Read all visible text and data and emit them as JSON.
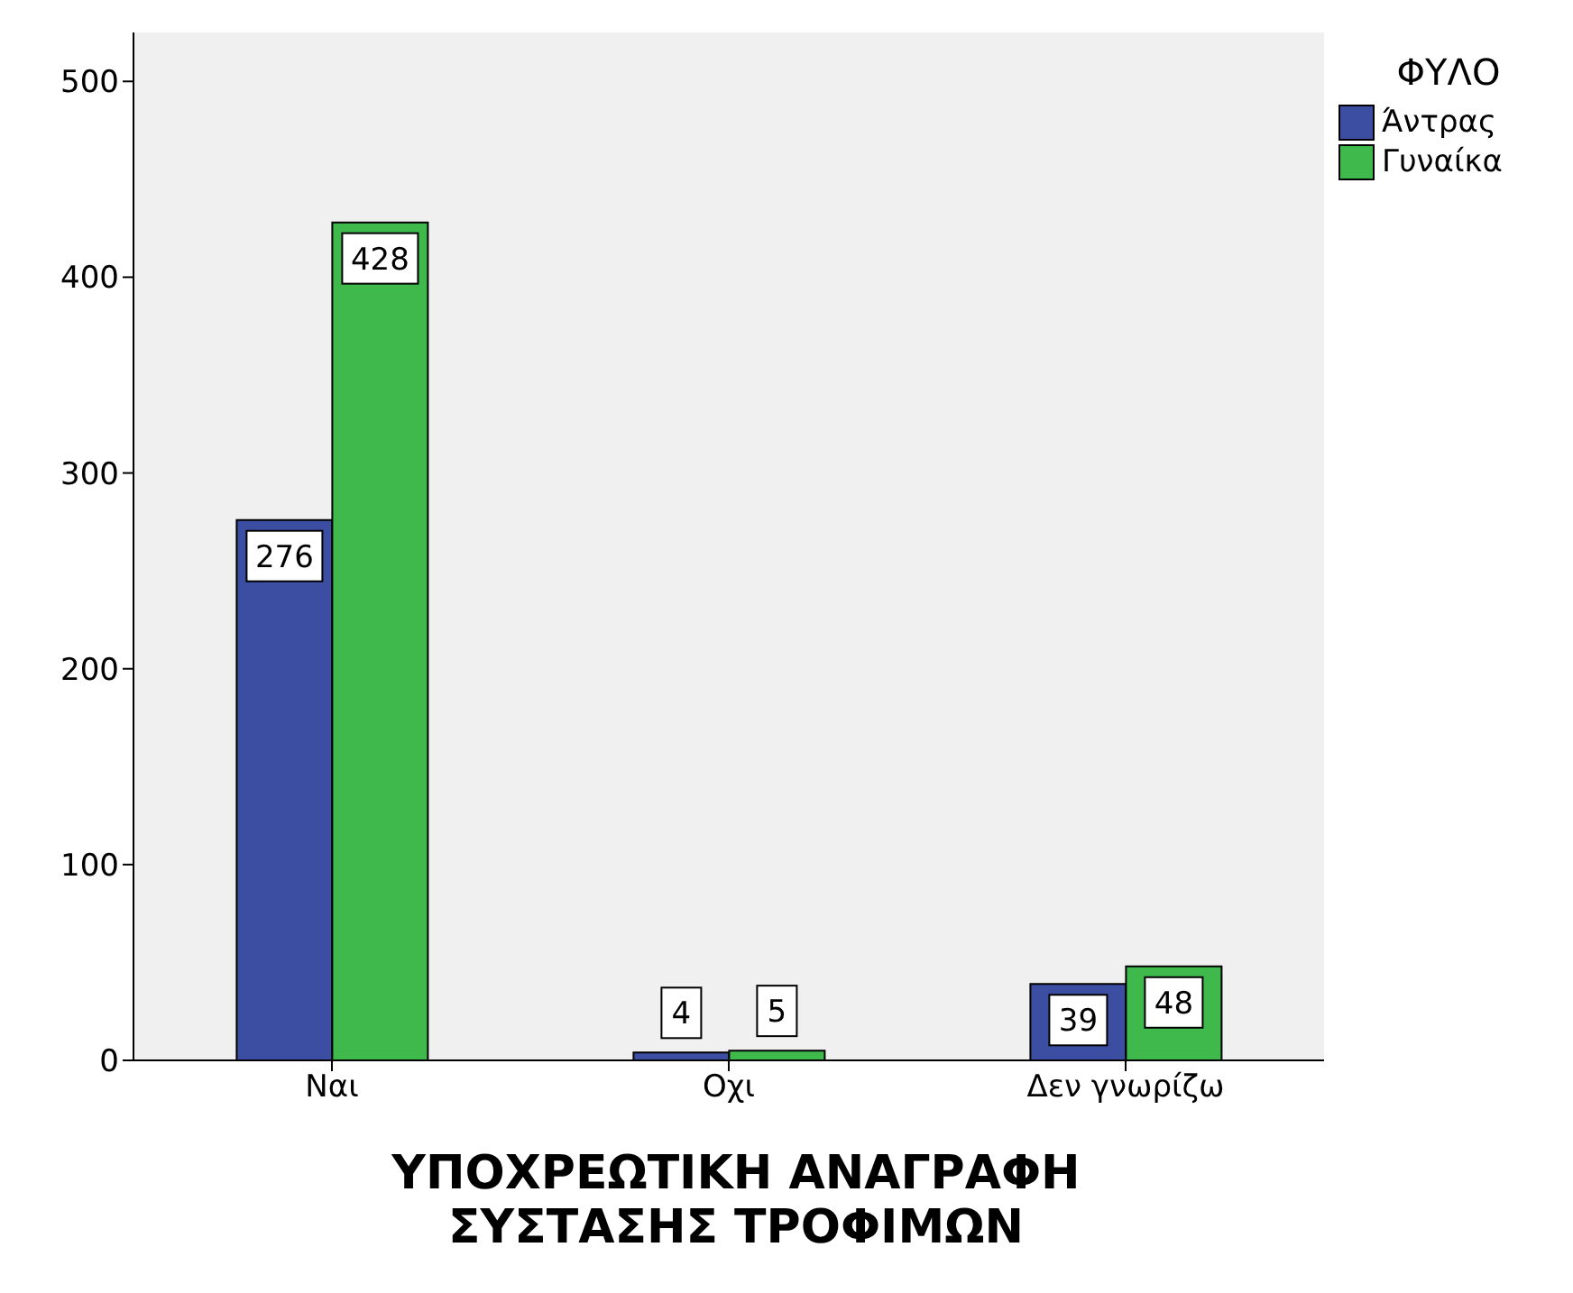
{
  "chart_data": {
    "type": "bar",
    "xlabel": "ΥΠΟΧΡΕΩΤΙΚΗ ΑΝΑΓΡΑΦΗ\nΣΥΣΤΑΣΗΣ ΤΡΟΦΙΜΩΝ",
    "legend_title": "ΦΥΛΟ",
    "categories": [
      "Ναι",
      "Οχι",
      "Δεν γνωρίζω"
    ],
    "series": [
      {
        "name": "Άντρας",
        "color": "#3b4ea2",
        "values": [
          276,
          4,
          39
        ]
      },
      {
        "name": "Γυναίκα",
        "color": "#3fb84c",
        "values": [
          428,
          5,
          48
        ]
      }
    ],
    "ylim": [
      0,
      525
    ],
    "yticks": [
      0,
      100,
      200,
      300,
      400,
      500
    ],
    "grid": false,
    "legend": "top right",
    "data_labels": true
  }
}
